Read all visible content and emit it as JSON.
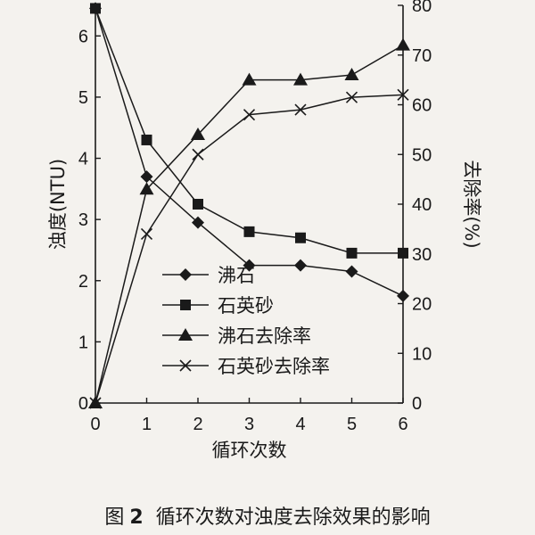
{
  "caption": {
    "prefix": "图",
    "number": "2",
    "text": "循环次数对浊度去除效果的影响"
  },
  "chart_data": {
    "type": "line",
    "x": [
      0,
      1,
      2,
      3,
      4,
      5,
      6
    ],
    "xlabel": "循环次数",
    "ylabel_left": "浊度(NTU)",
    "ylabel_right": "去除率(%)",
    "xlim": [
      0,
      6
    ],
    "ylim_left": [
      0,
      6.5
    ],
    "ylim_right": [
      0,
      80
    ],
    "x_ticks": [
      "0",
      "1",
      "2",
      "3",
      "4",
      "5",
      "6"
    ],
    "y_left_ticks": [
      "0",
      "1",
      "2",
      "3",
      "4",
      "5",
      "6"
    ],
    "y_right_ticks": [
      "0",
      "10",
      "20",
      "30",
      "40",
      "50",
      "60",
      "70",
      "80"
    ],
    "grid": false,
    "legend_position": "bottom-center",
    "series": [
      {
        "name": "沸石",
        "axis": "left",
        "marker": "diamond",
        "values": [
          6.45,
          3.7,
          2.95,
          2.25,
          2.25,
          2.15,
          1.75
        ]
      },
      {
        "name": "石英砂",
        "axis": "left",
        "marker": "square",
        "values": [
          6.45,
          4.3,
          3.25,
          2.8,
          2.7,
          2.45,
          2.45
        ]
      },
      {
        "name": "沸石去除率",
        "axis": "right",
        "marker": "triangle",
        "values": [
          0,
          43,
          54,
          65,
          65,
          66,
          72
        ]
      },
      {
        "name": "石英砂去除率",
        "axis": "right",
        "marker": "x",
        "values": [
          0,
          34,
          50,
          58,
          59,
          61.5,
          62
        ]
      }
    ],
    "colors": {
      "line": "#1a1a1a",
      "background": "#f4f2ee"
    }
  }
}
